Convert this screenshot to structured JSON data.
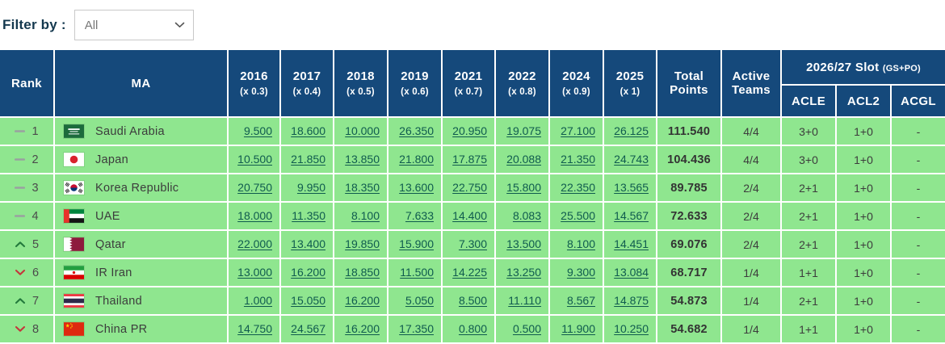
{
  "filter": {
    "label": "Filter by :",
    "selected": "All"
  },
  "colors": {
    "header_bg": "#15497b",
    "row_bg": "#8fe68f",
    "link": "#0f5b4e",
    "trend_up": "#237a3c",
    "trend_down": "#c4373c",
    "trend_same": "#9aa0a0"
  },
  "table": {
    "header": {
      "rank": "Rank",
      "ma": "MA",
      "years": [
        {
          "year": "2016",
          "mult": "(x 0.3)"
        },
        {
          "year": "2017",
          "mult": "(x 0.4)"
        },
        {
          "year": "2018",
          "mult": "(x 0.5)"
        },
        {
          "year": "2019",
          "mult": "(x 0.6)"
        },
        {
          "year": "2021",
          "mult": "(x 0.7)"
        },
        {
          "year": "2022",
          "mult": "(x 0.8)"
        },
        {
          "year": "2024",
          "mult": "(x 0.9)"
        },
        {
          "year": "2025",
          "mult": "(x 1)"
        }
      ],
      "total": "Total Points",
      "active": "Active Teams",
      "slot_group": "2026/27 Slot",
      "slot_group_suffix": "(GS+PO)",
      "slot_cols": [
        "ACLE",
        "ACL2",
        "ACGL"
      ]
    },
    "rows": [
      {
        "trend": "same",
        "rank": "1",
        "flag": "saudi-arabia-flag",
        "name": "Saudi Arabia",
        "scores": [
          "9.500",
          "18.600",
          "10.000",
          "26.350",
          "20.950",
          "19.075",
          "27.100",
          "26.125"
        ],
        "total": "111.540",
        "active": "4/4",
        "acle": "3+0",
        "acl2": "1+0",
        "acgl": "-"
      },
      {
        "trend": "same",
        "rank": "2",
        "flag": "japan-flag",
        "name": "Japan",
        "scores": [
          "10.500",
          "21.850",
          "13.850",
          "21.800",
          "17.875",
          "20.088",
          "21.350",
          "24.743"
        ],
        "total": "104.436",
        "active": "4/4",
        "acle": "3+0",
        "acl2": "1+0",
        "acgl": "-"
      },
      {
        "trend": "same",
        "rank": "3",
        "flag": "korea-republic-flag",
        "name": "Korea Republic",
        "scores": [
          "20.750",
          "9.950",
          "18.350",
          "13.600",
          "22.750",
          "15.800",
          "22.350",
          "13.565"
        ],
        "total": "89.785",
        "active": "2/4",
        "acle": "2+1",
        "acl2": "1+0",
        "acgl": "-"
      },
      {
        "trend": "same",
        "rank": "4",
        "flag": "uae-flag",
        "name": "UAE",
        "scores": [
          "18.000",
          "11.350",
          "8.100",
          "7.633",
          "14.400",
          "8.083",
          "25.500",
          "14.567"
        ],
        "total": "72.633",
        "active": "2/4",
        "acle": "2+1",
        "acl2": "1+0",
        "acgl": "-"
      },
      {
        "trend": "up",
        "rank": "5",
        "flag": "qatar-flag",
        "name": "Qatar",
        "scores": [
          "22.000",
          "13.400",
          "19.850",
          "15.900",
          "7.300",
          "13.500",
          "8.100",
          "14.451"
        ],
        "total": "69.076",
        "active": "2/4",
        "acle": "2+1",
        "acl2": "1+0",
        "acgl": "-"
      },
      {
        "trend": "down",
        "rank": "6",
        "flag": "iran-flag",
        "name": "IR Iran",
        "scores": [
          "13.000",
          "16.200",
          "18.850",
          "11.500",
          "14.225",
          "13.250",
          "9.300",
          "13.084"
        ],
        "total": "68.717",
        "active": "1/4",
        "acle": "1+1",
        "acl2": "1+0",
        "acgl": "-"
      },
      {
        "trend": "up",
        "rank": "7",
        "flag": "thailand-flag",
        "name": "Thailand",
        "scores": [
          "1.000",
          "15.050",
          "16.200",
          "5.050",
          "8.500",
          "11.110",
          "8.567",
          "14.875"
        ],
        "total": "54.873",
        "active": "1/4",
        "acle": "2+1",
        "acl2": "1+0",
        "acgl": "-"
      },
      {
        "trend": "down",
        "rank": "8",
        "flag": "china-pr-flag",
        "name": "China PR",
        "scores": [
          "14.750",
          "24.567",
          "16.200",
          "17.350",
          "0.800",
          "0.500",
          "11.900",
          "10.250"
        ],
        "total": "54.682",
        "active": "1/4",
        "acle": "1+1",
        "acl2": "1+0",
        "acgl": "-"
      }
    ]
  }
}
